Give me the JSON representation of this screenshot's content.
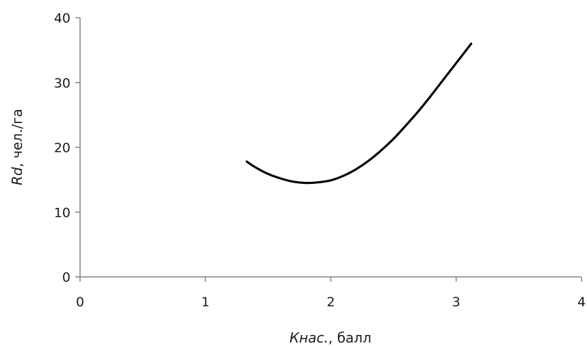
{
  "chart_data": {
    "type": "line",
    "xlabel_italic": "Кнас.",
    "xlabel_rest": ", балл",
    "ylabel_italic": "Rd",
    "ylabel_rest": ", чел./га",
    "xlim": [
      0,
      4
    ],
    "ylim": [
      0,
      40
    ],
    "x_ticks": [
      "0",
      "1",
      "2",
      "3",
      "4"
    ],
    "y_ticks": [
      "0",
      "10",
      "20",
      "30",
      "40"
    ],
    "grid": false,
    "series": [
      {
        "x": [
          1.33,
          1.4,
          1.5,
          1.6,
          1.7,
          1.8,
          1.9,
          2.0,
          2.1,
          2.2,
          2.3,
          2.4,
          2.5,
          2.6,
          2.7,
          2.8,
          2.9,
          3.0,
          3.1,
          3.12
        ],
        "y": [
          17.8,
          16.9,
          15.9,
          15.2,
          14.7,
          14.5,
          14.6,
          14.9,
          15.6,
          16.6,
          17.9,
          19.5,
          21.3,
          23.4,
          25.6,
          28.0,
          30.5,
          33.0,
          35.5,
          36.0
        ]
      }
    ],
    "line_color": "#000000"
  }
}
